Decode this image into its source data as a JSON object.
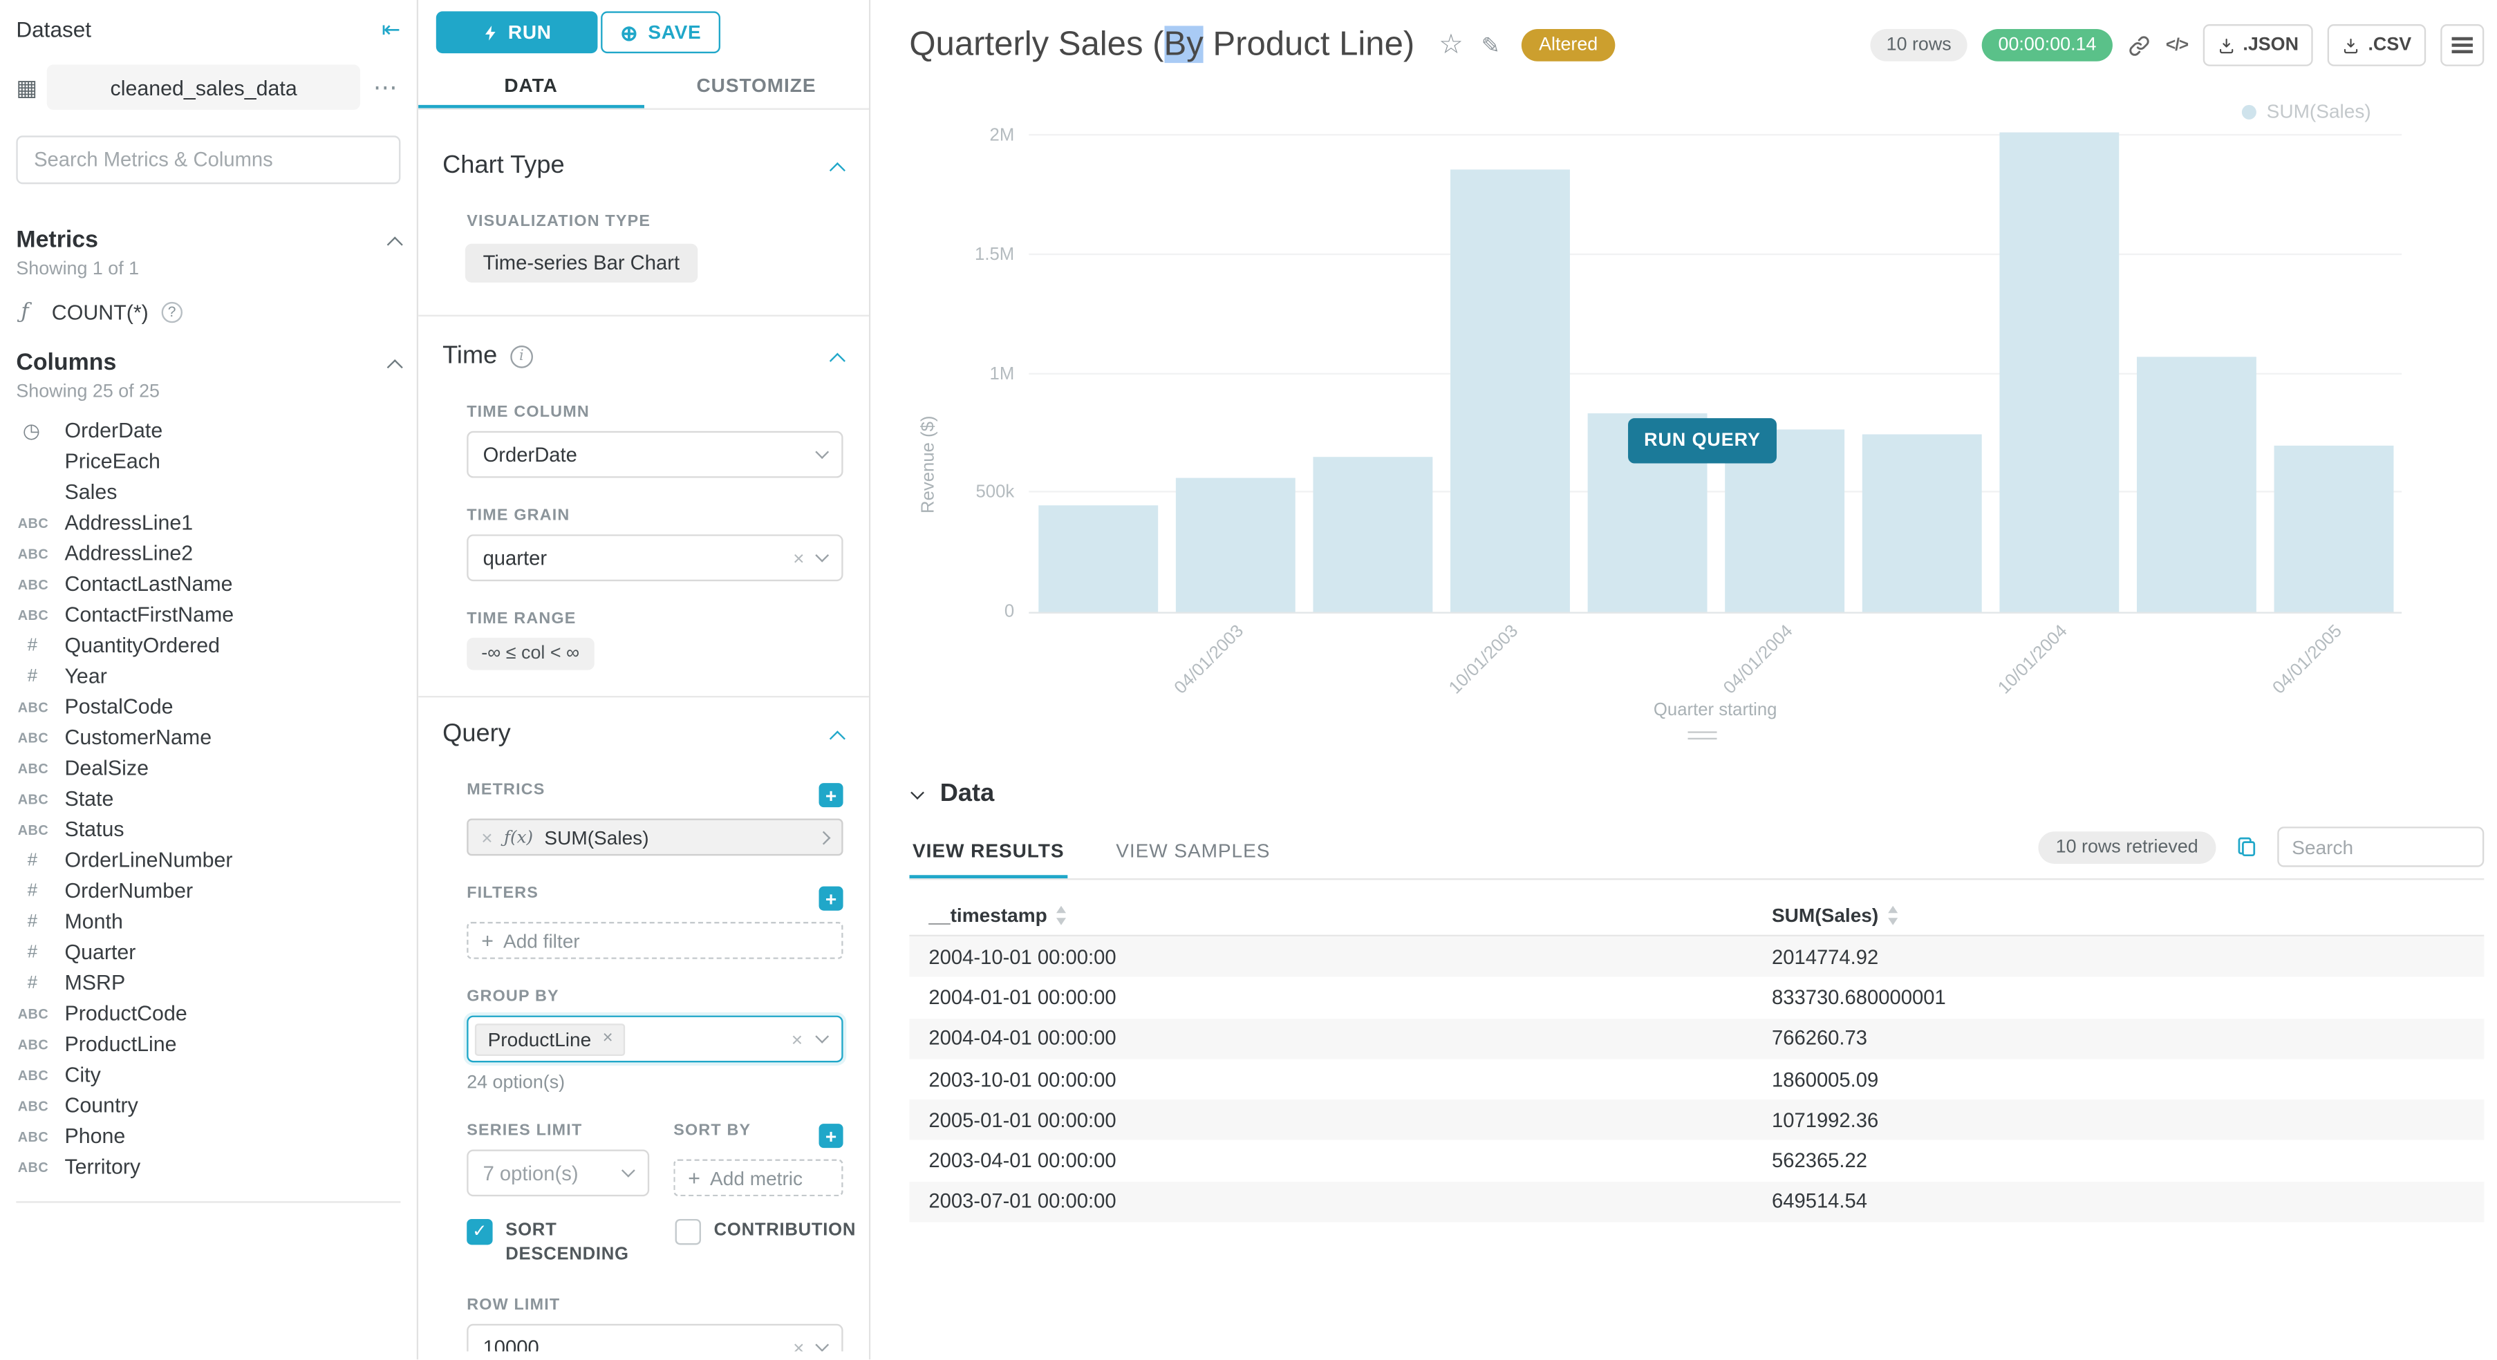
{
  "colors": {
    "primary": "#20A7C9",
    "timer_badge_bg": "#5AC189",
    "altered_badge_bg": "#CC9F2E",
    "stale_bar": "#D3E7EF",
    "run_query_button_bg": "#1B7A99",
    "title_selection": "#A9CBF5"
  },
  "dataset_panel": {
    "title": "Dataset",
    "dataset_name": "cleaned_sales_data",
    "search_placeholder": "Search Metrics & Columns",
    "metrics": {
      "header": "Metrics",
      "showing": "Showing 1 of 1",
      "items": [
        {
          "icon": "function",
          "label": "COUNT(*)"
        }
      ]
    },
    "columns": {
      "header": "Columns",
      "showing": "Showing 25 of 25",
      "items": [
        {
          "type": "time",
          "label": "OrderDate"
        },
        {
          "type": "none",
          "label": "PriceEach"
        },
        {
          "type": "none",
          "label": "Sales"
        },
        {
          "type": "abc",
          "label": "AddressLine1"
        },
        {
          "type": "abc",
          "label": "AddressLine2"
        },
        {
          "type": "abc",
          "label": "ContactLastName"
        },
        {
          "type": "abc",
          "label": "ContactFirstName"
        },
        {
          "type": "num",
          "label": "QuantityOrdered"
        },
        {
          "type": "num",
          "label": "Year"
        },
        {
          "type": "abc",
          "label": "PostalCode"
        },
        {
          "type": "abc",
          "label": "CustomerName"
        },
        {
          "type": "abc",
          "label": "DealSize"
        },
        {
          "type": "abc",
          "label": "State"
        },
        {
          "type": "abc",
          "label": "Status"
        },
        {
          "type": "num",
          "label": "OrderLineNumber"
        },
        {
          "type": "num",
          "label": "OrderNumber"
        },
        {
          "type": "num",
          "label": "Month"
        },
        {
          "type": "num",
          "label": "Quarter"
        },
        {
          "type": "num",
          "label": "MSRP"
        },
        {
          "type": "abc",
          "label": "ProductCode"
        },
        {
          "type": "abc",
          "label": "ProductLine"
        },
        {
          "type": "abc",
          "label": "City"
        },
        {
          "type": "abc",
          "label": "Country"
        },
        {
          "type": "abc",
          "label": "Phone"
        },
        {
          "type": "abc",
          "label": "Territory"
        }
      ]
    }
  },
  "control_panel": {
    "run_label": "RUN",
    "save_label": "SAVE",
    "tabs": [
      "DATA",
      "CUSTOMIZE"
    ],
    "chart_type": {
      "header": "Chart Type",
      "visualization_type_label": "VISUALIZATION TYPE",
      "visualization_type": "Time-series Bar Chart"
    },
    "time": {
      "header": "Time",
      "time_column_label": "TIME COLUMN",
      "time_column": "OrderDate",
      "time_grain_label": "TIME GRAIN",
      "time_grain": "quarter",
      "time_range_label": "TIME RANGE",
      "time_range": "-∞ ≤ col < ∞"
    },
    "query": {
      "header": "Query",
      "metrics_label": "METRICS",
      "metric": "SUM(Sales)",
      "filters_label": "FILTERS",
      "add_filter_label": "Add filter",
      "group_by_label": "GROUP BY",
      "group_by_tag": "ProductLine",
      "group_by_note": "24 option(s)",
      "series_limit_label": "SERIES LIMIT",
      "series_limit_value": "7 option(s)",
      "sort_by_label": "SORT BY",
      "add_metric_label": "Add metric",
      "sort_descending_label": "SORT DESCENDING",
      "sort_descending_checked": true,
      "contribution_label": "CONTRIBUTION",
      "contribution_checked": false,
      "row_limit_label": "ROW LIMIT",
      "row_limit_value": "10000"
    }
  },
  "chart_header": {
    "title_prefix": "Quarterly Sales (",
    "title_selected": "By",
    "title_suffix": " Product Line)",
    "altered_badge": "Altered",
    "rows_badge": "10 rows",
    "timer": "00:00:00.14",
    "buttons": {
      "json": ".JSON",
      "csv": ".CSV"
    },
    "run_query_label": "RUN QUERY"
  },
  "chart_data": {
    "type": "bar",
    "title": "Quarterly Sales (By Product Line)",
    "xlabel": "Quarter starting",
    "ylabel": "Revenue ($)",
    "legend": [
      "SUM(Sales)"
    ],
    "legend_position": "top-right",
    "grid": true,
    "stale": true,
    "x": [
      "2003-01-01",
      "2003-04-01",
      "2003-07-01",
      "2003-10-01",
      "2004-01-01",
      "2004-04-01",
      "2004-07-01",
      "2004-10-01",
      "2005-01-01",
      "2005-04-01"
    ],
    "series": [
      {
        "name": "SUM(Sales)",
        "values": [
          445000,
          562365.22,
          649514.54,
          1860005.09,
          833730.68,
          766260.73,
          745000,
          2014774.92,
          1071992.36,
          700000
        ]
      }
    ],
    "ylim": [
      0,
      2000000
    ],
    "y_ticks": [
      "0",
      "500k",
      "1M",
      "1.5M",
      "2M"
    ],
    "x_tick_labels": [
      "04/01/2003",
      "10/01/2003",
      "04/01/2004",
      "10/01/2004",
      "04/01/2005"
    ],
    "x_tick_slots": [
      1,
      3,
      5,
      7,
      9
    ]
  },
  "data_panel": {
    "header": "Data",
    "tabs": [
      "VIEW RESULTS",
      "VIEW SAMPLES"
    ],
    "rows_retrieved": "10 rows retrieved",
    "search_placeholder": "Search",
    "table": {
      "columns": [
        "__timestamp",
        "SUM(Sales)"
      ],
      "rows": [
        [
          "2004-10-01 00:00:00",
          "2014774.92"
        ],
        [
          "2004-01-01 00:00:00",
          "833730.680000001"
        ],
        [
          "2004-04-01 00:00:00",
          "766260.73"
        ],
        [
          "2003-10-01 00:00:00",
          "1860005.09"
        ],
        [
          "2005-01-01 00:00:00",
          "1071992.36"
        ],
        [
          "2003-04-01 00:00:00",
          "562365.22"
        ],
        [
          "2003-07-01 00:00:00",
          "649514.54"
        ]
      ]
    }
  }
}
